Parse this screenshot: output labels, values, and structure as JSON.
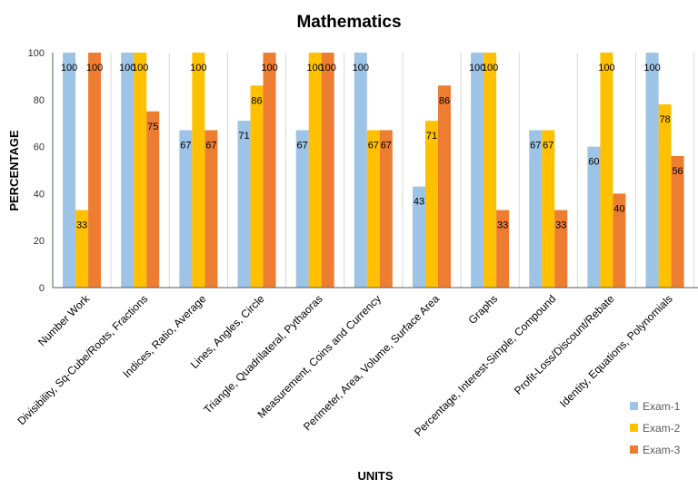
{
  "chart_data": {
    "type": "bar",
    "title": "Mathematics",
    "xlabel": "UNITS",
    "ylabel": "PERCENTAGE",
    "ylim": [
      0,
      100
    ],
    "yticks": [
      0,
      20,
      40,
      60,
      80,
      100
    ],
    "grid": false,
    "legend_position": "bottom-right",
    "categories": [
      "Number Work",
      "Divisibility, Sq-Cube/Roots, Fractions",
      "Indices, Ratio, Average",
      "Lines, Angles, Circle",
      "Triangle, Quadrilateral, Pythaoras",
      "Measurement,  Coins and Currency",
      "Perimeter, Area, Volume, Surface Area",
      "Graphs",
      "Percentage, Interest-Simple, Compound",
      "Profit-Loss/Discount/Rebate",
      "Identity, Equations, Polynomials"
    ],
    "series": [
      {
        "name": "Exam-1",
        "color": "#9dc3e6",
        "values": [
          100,
          100,
          67,
          71,
          67,
          100,
          43,
          100,
          67,
          60,
          100
        ]
      },
      {
        "name": "Exam-2",
        "color": "#ffc000",
        "values": [
          33,
          100,
          100,
          86,
          100,
          67,
          71,
          100,
          67,
          100,
          78
        ]
      },
      {
        "name": "Exam-3",
        "color": "#ed7d31",
        "values": [
          100,
          75,
          67,
          100,
          100,
          67,
          86,
          33,
          33,
          40,
          56
        ]
      }
    ]
  }
}
